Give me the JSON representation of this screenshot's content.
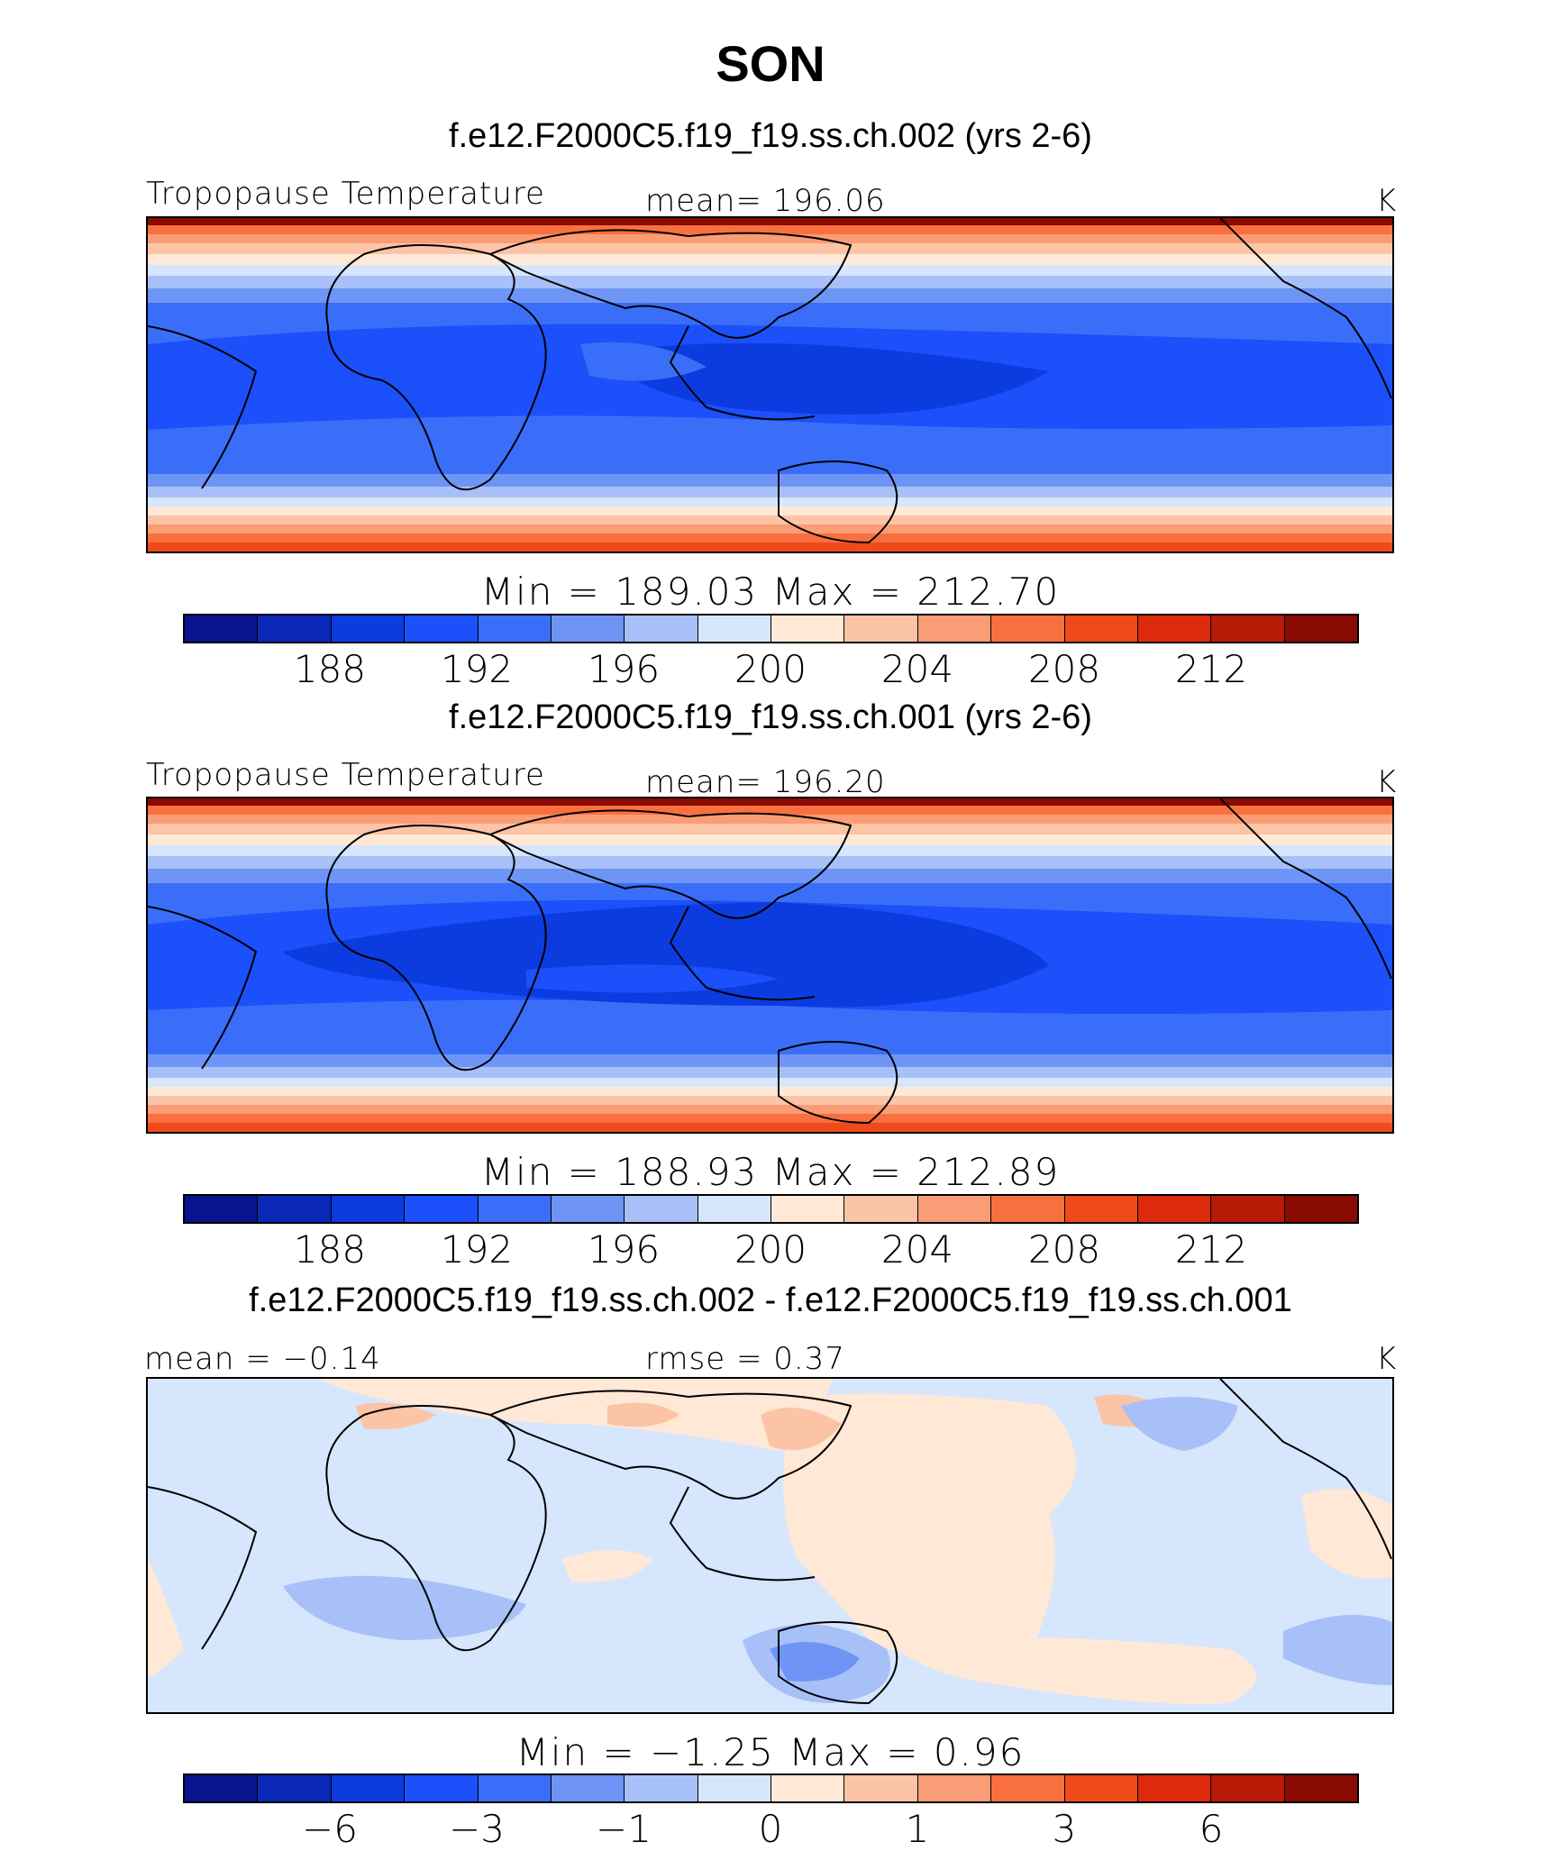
{
  "title": "SON",
  "chart_data": [
    {
      "type": "heatmap",
      "title": "f.e12.F2000C5.f19_f19.ss.ch.002 (yrs 2-6)",
      "variable": "Tropopause Temperature",
      "units": "K",
      "stat_text": "mean=  196.06",
      "mean": 196.06,
      "minmax_text": "Min  =  189.03  Max  =  212.70",
      "min": 189.03,
      "max": 212.7,
      "colorbar_ticks": [
        "188",
        "192",
        "196",
        "200",
        "204",
        "208",
        "212"
      ],
      "levels": [
        186,
        188,
        190,
        192,
        194,
        196,
        198,
        200,
        202,
        204,
        206,
        208,
        210,
        212,
        214
      ]
    },
    {
      "type": "heatmap",
      "title": "f.e12.F2000C5.f19_f19.ss.ch.001 (yrs 2-6)",
      "variable": "Tropopause Temperature",
      "units": "K",
      "stat_text": "mean=  196.20",
      "mean": 196.2,
      "minmax_text": "Min  =  188.93  Max  =  212.89",
      "min": 188.93,
      "max": 212.89,
      "colorbar_ticks": [
        "188",
        "192",
        "196",
        "200",
        "204",
        "208",
        "212"
      ],
      "levels": [
        186,
        188,
        190,
        192,
        194,
        196,
        198,
        200,
        202,
        204,
        206,
        208,
        210,
        212,
        214
      ]
    },
    {
      "type": "heatmap",
      "title": "f.e12.F2000C5.f19_f19.ss.ch.002 - f.e12.F2000C5.f19_f19.ss.ch.001",
      "mean_text": "mean  =    −0.14",
      "mean": -0.14,
      "rmse_text": "rmse  =      0.37",
      "rmse": 0.37,
      "units": "K",
      "minmax_text": "Min  =    −1.25  Max  =      0.96",
      "min": -1.25,
      "max": 0.96,
      "colorbar_ticks": [
        "−6",
        "−3",
        "−1",
        "0",
        "1",
        "3",
        "6"
      ]
    }
  ],
  "colors": {
    "palette": [
      "#08148c",
      "#0a28b8",
      "#0c3ce0",
      "#1b50fa",
      "#3a6ef8",
      "#6e95f6",
      "#a7c0f8",
      "#d6e6fc",
      "#ffe8d6",
      "#fcc4a6",
      "#fa9c76",
      "#f8703f",
      "#ee4a1a",
      "#dc2a0c",
      "#b81a08",
      "#8a0a04"
    ]
  }
}
